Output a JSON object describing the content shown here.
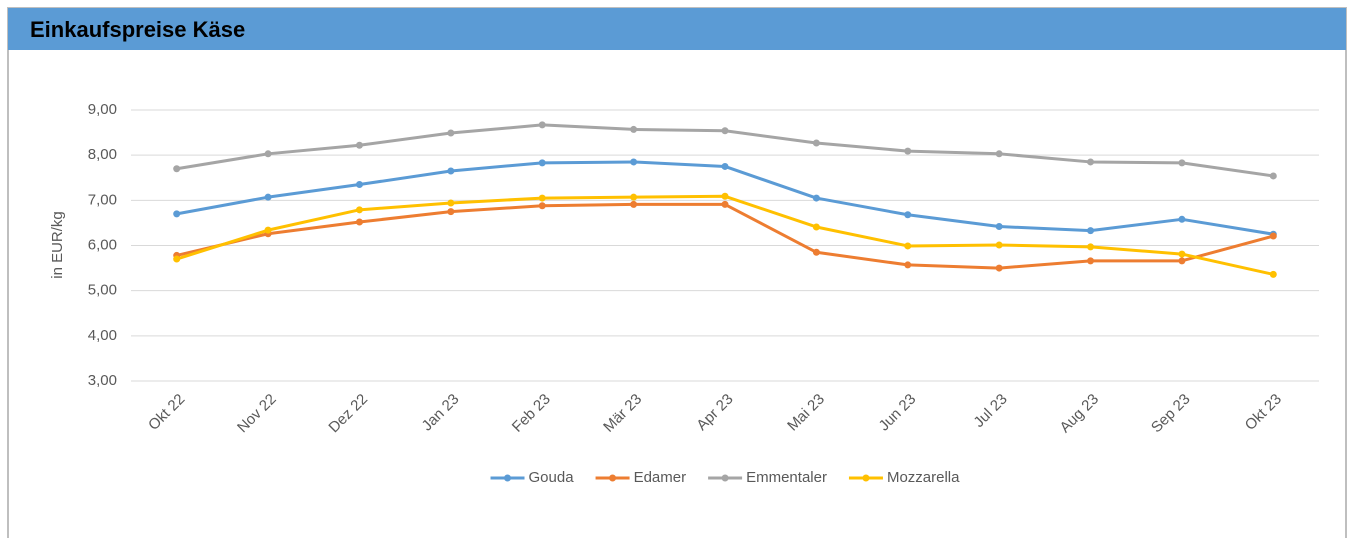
{
  "chart_data": {
    "type": "line",
    "title": "Einkaufspreise Käse",
    "ylabel": "in EUR/kg",
    "categories": [
      "Okt 22",
      "Nov 22",
      "Dez 22",
      "Jan 23",
      "Feb 23",
      "Mär 23",
      "Apr 23",
      "Mai 23",
      "Jun 23",
      "Jul 23",
      "Aug 23",
      "Sep 23",
      "Okt 23"
    ],
    "series": [
      {
        "name": "Gouda",
        "color": "#5b9bd5",
        "values": [
          6.7,
          7.07,
          7.35,
          7.65,
          7.83,
          7.85,
          7.75,
          7.05,
          6.68,
          6.42,
          6.33,
          6.58,
          6.25
        ]
      },
      {
        "name": "Edamer",
        "color": "#ed7d31",
        "values": [
          5.78,
          6.26,
          6.52,
          6.75,
          6.88,
          6.91,
          6.91,
          5.85,
          5.57,
          5.5,
          5.66,
          5.66,
          6.21
        ]
      },
      {
        "name": "Emmentaler",
        "color": "#a5a5a5",
        "values": [
          7.7,
          8.03,
          8.22,
          8.49,
          8.67,
          8.57,
          8.54,
          8.27,
          8.09,
          8.03,
          7.85,
          7.83,
          7.54
        ]
      },
      {
        "name": "Mozzarella",
        "color": "#ffc000",
        "values": [
          5.7,
          6.34,
          6.79,
          6.94,
          7.05,
          7.07,
          7.09,
          6.41,
          5.99,
          6.01,
          5.97,
          5.81,
          5.36
        ]
      }
    ],
    "ylim": [
      3,
      9
    ],
    "yticks": [
      {
        "value": 3,
        "label": "3,00"
      },
      {
        "value": 4,
        "label": "4,00"
      },
      {
        "value": 5,
        "label": "5,00"
      },
      {
        "value": 6,
        "label": "6,00"
      },
      {
        "value": 7,
        "label": "7,00"
      },
      {
        "value": 8,
        "label": "8,00"
      },
      {
        "value": 9,
        "label": "9,00"
      }
    ],
    "grid": true,
    "legend": "bottom"
  }
}
